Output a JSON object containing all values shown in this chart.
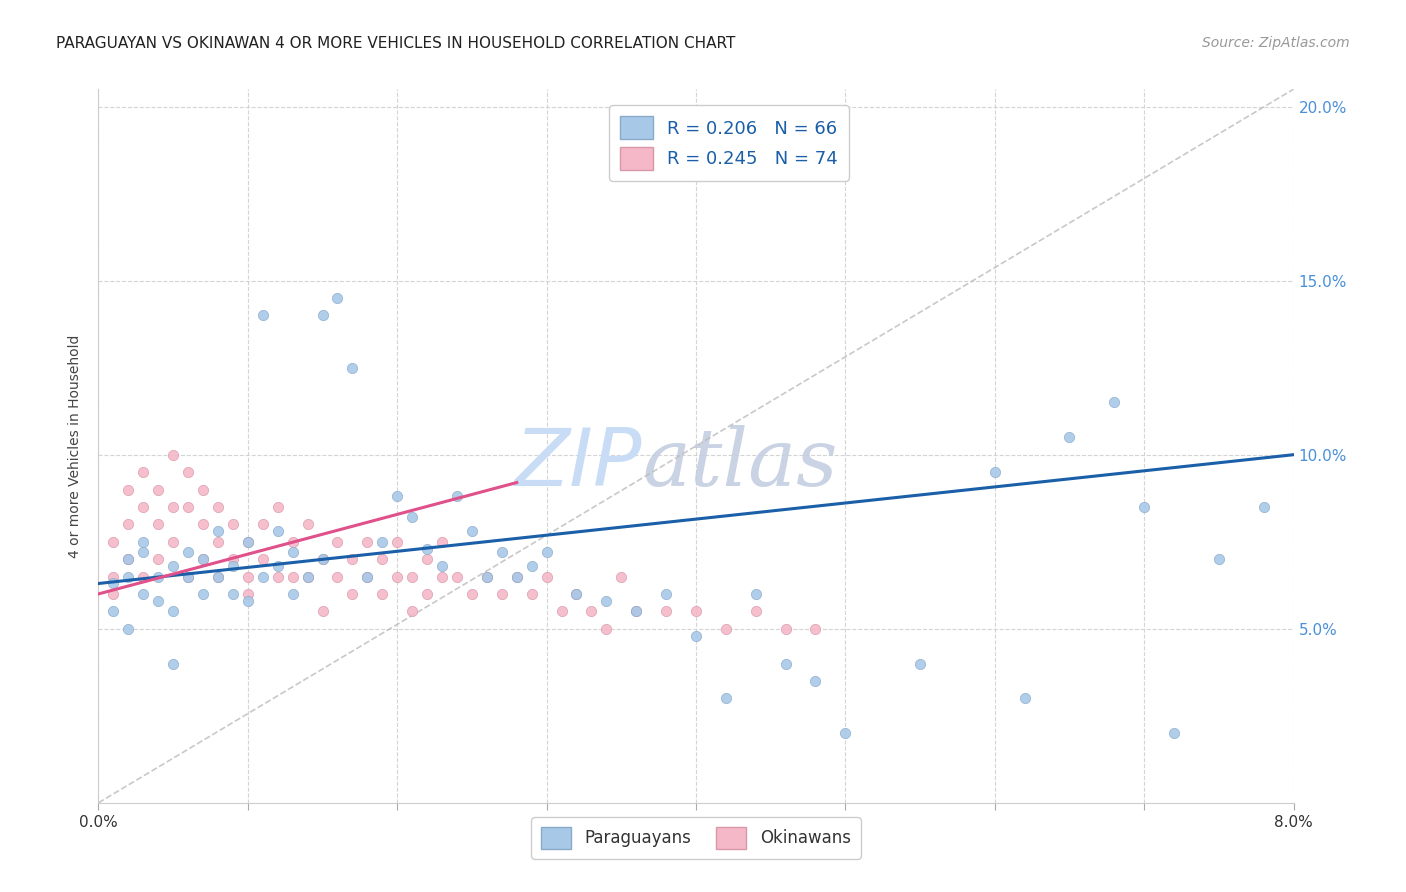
{
  "title": "PARAGUAYAN VS OKINAWAN 4 OR MORE VEHICLES IN HOUSEHOLD CORRELATION CHART",
  "source": "Source: ZipAtlas.com",
  "ylabel": "4 or more Vehicles in Household",
  "xmin": 0.0,
  "xmax": 0.08,
  "ymin": 0.0,
  "ymax": 0.205,
  "right_yticks": [
    0.05,
    0.1,
    0.15,
    0.2
  ],
  "right_yticklabels": [
    "5.0%",
    "10.0%",
    "15.0%",
    "20.0%"
  ],
  "legend_blue_label": "R = 0.206   N = 66",
  "legend_pink_label": "R = 0.245   N = 74",
  "blue_marker_color": "#a8c8e8",
  "blue_marker_edge": "#88aac8",
  "pink_marker_color": "#f4b8c8",
  "pink_marker_edge": "#d898a8",
  "blue_line_color": "#1a5fa8",
  "pink_line_color": "#e0508a",
  "diag_color": "#bbbbbb",
  "watermark_zip_color": "#c8ddf5",
  "watermark_atlas_color": "#c0cce0",
  "legend_text_color": "#1a5fa8",
  "blue_x": [
    0.001,
    0.001,
    0.002,
    0.002,
    0.002,
    0.003,
    0.003,
    0.003,
    0.004,
    0.004,
    0.005,
    0.005,
    0.005,
    0.006,
    0.006,
    0.007,
    0.007,
    0.008,
    0.008,
    0.009,
    0.009,
    0.01,
    0.01,
    0.011,
    0.011,
    0.012,
    0.012,
    0.013,
    0.013,
    0.014,
    0.015,
    0.015,
    0.016,
    0.017,
    0.018,
    0.019,
    0.02,
    0.021,
    0.022,
    0.023,
    0.024,
    0.025,
    0.026,
    0.027,
    0.028,
    0.029,
    0.03,
    0.032,
    0.034,
    0.036,
    0.038,
    0.04,
    0.042,
    0.044,
    0.046,
    0.048,
    0.05,
    0.055,
    0.06,
    0.062,
    0.065,
    0.068,
    0.07,
    0.072,
    0.075,
    0.078
  ],
  "blue_y": [
    0.063,
    0.055,
    0.07,
    0.065,
    0.05,
    0.075,
    0.06,
    0.072,
    0.065,
    0.058,
    0.068,
    0.055,
    0.04,
    0.065,
    0.072,
    0.07,
    0.06,
    0.065,
    0.078,
    0.06,
    0.068,
    0.075,
    0.058,
    0.065,
    0.14,
    0.068,
    0.078,
    0.06,
    0.072,
    0.065,
    0.14,
    0.07,
    0.145,
    0.125,
    0.065,
    0.075,
    0.088,
    0.082,
    0.073,
    0.068,
    0.088,
    0.078,
    0.065,
    0.072,
    0.065,
    0.068,
    0.072,
    0.06,
    0.058,
    0.055,
    0.06,
    0.048,
    0.03,
    0.06,
    0.04,
    0.035,
    0.02,
    0.04,
    0.095,
    0.03,
    0.105,
    0.115,
    0.085,
    0.02,
    0.07,
    0.085
  ],
  "pink_x": [
    0.001,
    0.001,
    0.001,
    0.002,
    0.002,
    0.002,
    0.003,
    0.003,
    0.003,
    0.004,
    0.004,
    0.004,
    0.005,
    0.005,
    0.005,
    0.006,
    0.006,
    0.006,
    0.007,
    0.007,
    0.007,
    0.008,
    0.008,
    0.008,
    0.009,
    0.009,
    0.01,
    0.01,
    0.01,
    0.011,
    0.011,
    0.012,
    0.012,
    0.013,
    0.013,
    0.014,
    0.014,
    0.015,
    0.015,
    0.016,
    0.016,
    0.017,
    0.017,
    0.018,
    0.018,
    0.019,
    0.019,
    0.02,
    0.02,
    0.021,
    0.021,
    0.022,
    0.022,
    0.023,
    0.023,
    0.024,
    0.025,
    0.026,
    0.027,
    0.028,
    0.029,
    0.03,
    0.031,
    0.032,
    0.033,
    0.034,
    0.035,
    0.036,
    0.038,
    0.04,
    0.042,
    0.044,
    0.046,
    0.048
  ],
  "pink_y": [
    0.065,
    0.075,
    0.06,
    0.08,
    0.09,
    0.07,
    0.095,
    0.085,
    0.065,
    0.09,
    0.08,
    0.07,
    0.085,
    0.1,
    0.075,
    0.085,
    0.095,
    0.065,
    0.09,
    0.08,
    0.07,
    0.085,
    0.075,
    0.065,
    0.08,
    0.07,
    0.075,
    0.065,
    0.06,
    0.07,
    0.08,
    0.085,
    0.065,
    0.075,
    0.065,
    0.08,
    0.065,
    0.07,
    0.055,
    0.065,
    0.075,
    0.07,
    0.06,
    0.075,
    0.065,
    0.07,
    0.06,
    0.065,
    0.075,
    0.065,
    0.055,
    0.07,
    0.06,
    0.065,
    0.075,
    0.065,
    0.06,
    0.065,
    0.06,
    0.065,
    0.06,
    0.065,
    0.055,
    0.06,
    0.055,
    0.05,
    0.065,
    0.055,
    0.055,
    0.055,
    0.05,
    0.055,
    0.05,
    0.05
  ],
  "blue_line_x": [
    0.0,
    0.08
  ],
  "blue_line_y": [
    0.063,
    0.1
  ],
  "pink_line_x": [
    0.0,
    0.028
  ],
  "pink_line_y": [
    0.06,
    0.092
  ]
}
